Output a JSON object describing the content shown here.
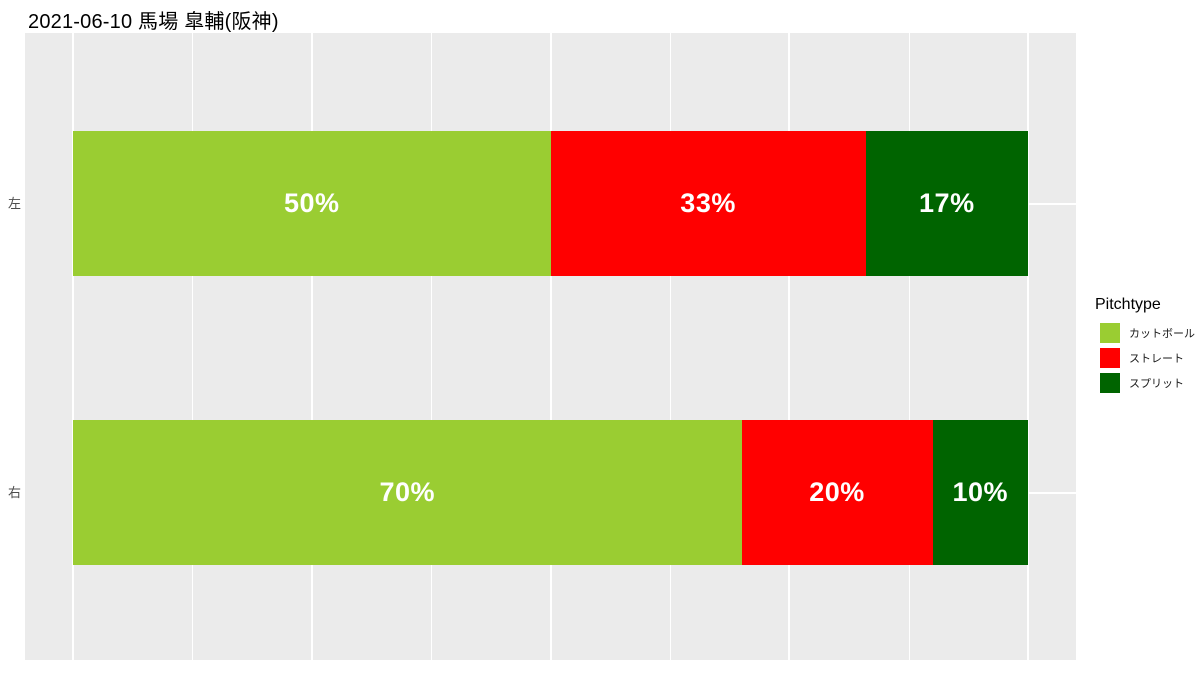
{
  "title": "2021-06-10 馬場 皐輔(阪神)",
  "legend": {
    "title": "Pitchtype"
  },
  "chart_data": {
    "type": "bar",
    "subtype": "horizontal-stacked-100pct",
    "title": "2021-06-10 馬場 皐輔(阪神)",
    "categories": [
      "左",
      "右"
    ],
    "series": [
      {
        "name": "カットボール",
        "color": "#9ACD32",
        "values": [
          50,
          70
        ]
      },
      {
        "name": "ストレート",
        "color": "#FF0000",
        "values": [
          33,
          20
        ]
      },
      {
        "name": "スプリット",
        "color": "#006400",
        "values": [
          17,
          10
        ]
      }
    ],
    "value_labels": [
      [
        "50%",
        "33%",
        "17%"
      ],
      [
        "70%",
        "20%",
        "10%"
      ]
    ],
    "xlim": [
      0,
      100
    ],
    "x_major_breaks": [
      0,
      25,
      50,
      75,
      100
    ],
    "x_minor_breaks": [
      12.5,
      37.5,
      62.5,
      87.5
    ],
    "grid": "white-on-gray",
    "panel_background": "#EBEBEB",
    "gridline_color": "#FFFFFF",
    "bar_label_color": "#FFFFFF",
    "axis_text_color": "#4D4D4D",
    "legend_position": "right",
    "legend_title": "Pitchtype"
  }
}
